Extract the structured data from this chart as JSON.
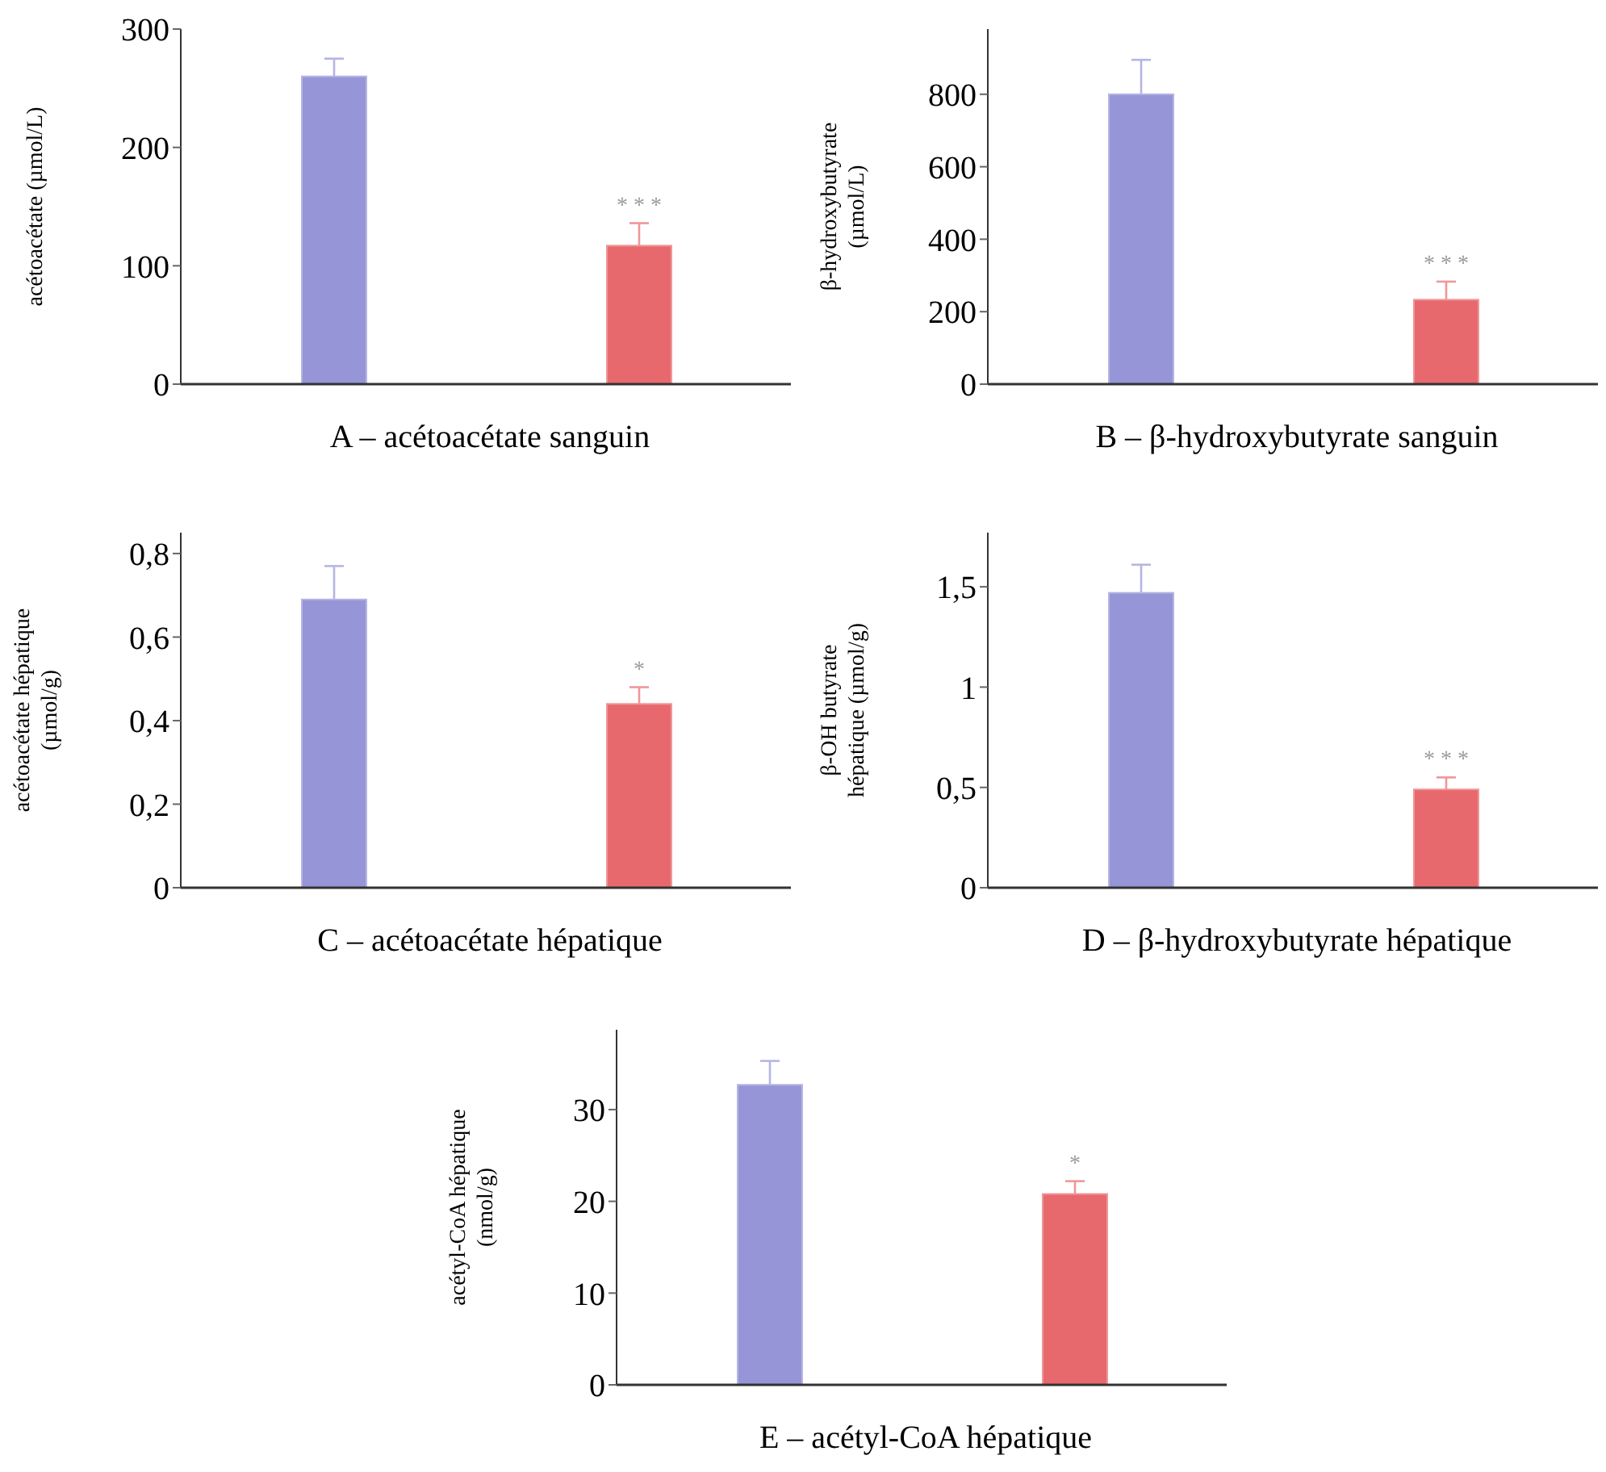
{
  "chart_data": [
    {
      "type": "bar",
      "xlabel": "A – acétoacétate sanguin",
      "ylabel": "acétoacétate (µmol/L)",
      "categories": [
        null,
        null
      ],
      "values": [
        260,
        117
      ],
      "errors": [
        15,
        19
      ],
      "value_labels": [
        null,
        "* * *"
      ],
      "colors": [
        "#9595d7",
        "#e8696d"
      ],
      "ylim": [
        0,
        300
      ],
      "yticks": [
        0,
        100,
        200,
        300
      ]
    },
    {
      "type": "bar",
      "xlabel": "B – β-hydroxybutyrate sanguin",
      "ylabel": "β-hydroxybutyrate\n(µmol/L)",
      "categories": [
        null,
        null
      ],
      "values": [
        800,
        233
      ],
      "errors": [
        95,
        50
      ],
      "value_labels": [
        null,
        "* * *"
      ],
      "colors": [
        "#9595d7",
        "#e8696d"
      ],
      "ylim": [
        0,
        980
      ],
      "yticks": [
        0,
        200,
        400,
        600,
        800
      ]
    },
    {
      "type": "bar",
      "xlabel": "C – acétoacétate hépatique",
      "ylabel": "acétoacétate hépatique\n(µmol/g)",
      "categories": [
        null,
        null
      ],
      "values": [
        0.69,
        0.44
      ],
      "errors": [
        0.08,
        0.04
      ],
      "value_labels": [
        null,
        "*"
      ],
      "colors": [
        "#9595d7",
        "#e8696d"
      ],
      "ylim": [
        0,
        0.85
      ],
      "yticks": [
        0,
        {
          "value": 0.2,
          "label": "0,2"
        },
        {
          "value": 0.4,
          "label": "0,4"
        },
        {
          "value": 0.6,
          "label": "0,6"
        },
        {
          "value": 0.8,
          "label": "0,8"
        }
      ]
    },
    {
      "type": "bar",
      "xlabel": "D – β-hydroxybutyrate hépatique",
      "ylabel": "β-OH butyrate\nhépatique (µmol/g)",
      "categories": [
        null,
        null
      ],
      "values": [
        1.47,
        0.49
      ],
      "errors": [
        0.14,
        0.06
      ],
      "value_labels": [
        null,
        "* * *"
      ],
      "colors": [
        "#9595d7",
        "#e8696d"
      ],
      "ylim": [
        0,
        1.77
      ],
      "yticks": [
        0,
        {
          "value": 0.5,
          "label": "0,5"
        },
        1,
        {
          "value": 1.5,
          "label": "1,5"
        }
      ]
    },
    {
      "type": "bar",
      "xlabel": "E – acétyl-CoA hépatique",
      "ylabel": "acétyl-CoA hépatique\n(nmol/g)",
      "categories": [
        null,
        null
      ],
      "values": [
        32.7,
        20.8
      ],
      "errors": [
        2.6,
        1.4
      ],
      "value_labels": [
        null,
        "*"
      ],
      "colors": [
        "#9595d7",
        "#e8696d"
      ],
      "ylim": [
        0,
        38.7
      ],
      "yticks": [
        0,
        10,
        20,
        30
      ]
    }
  ]
}
